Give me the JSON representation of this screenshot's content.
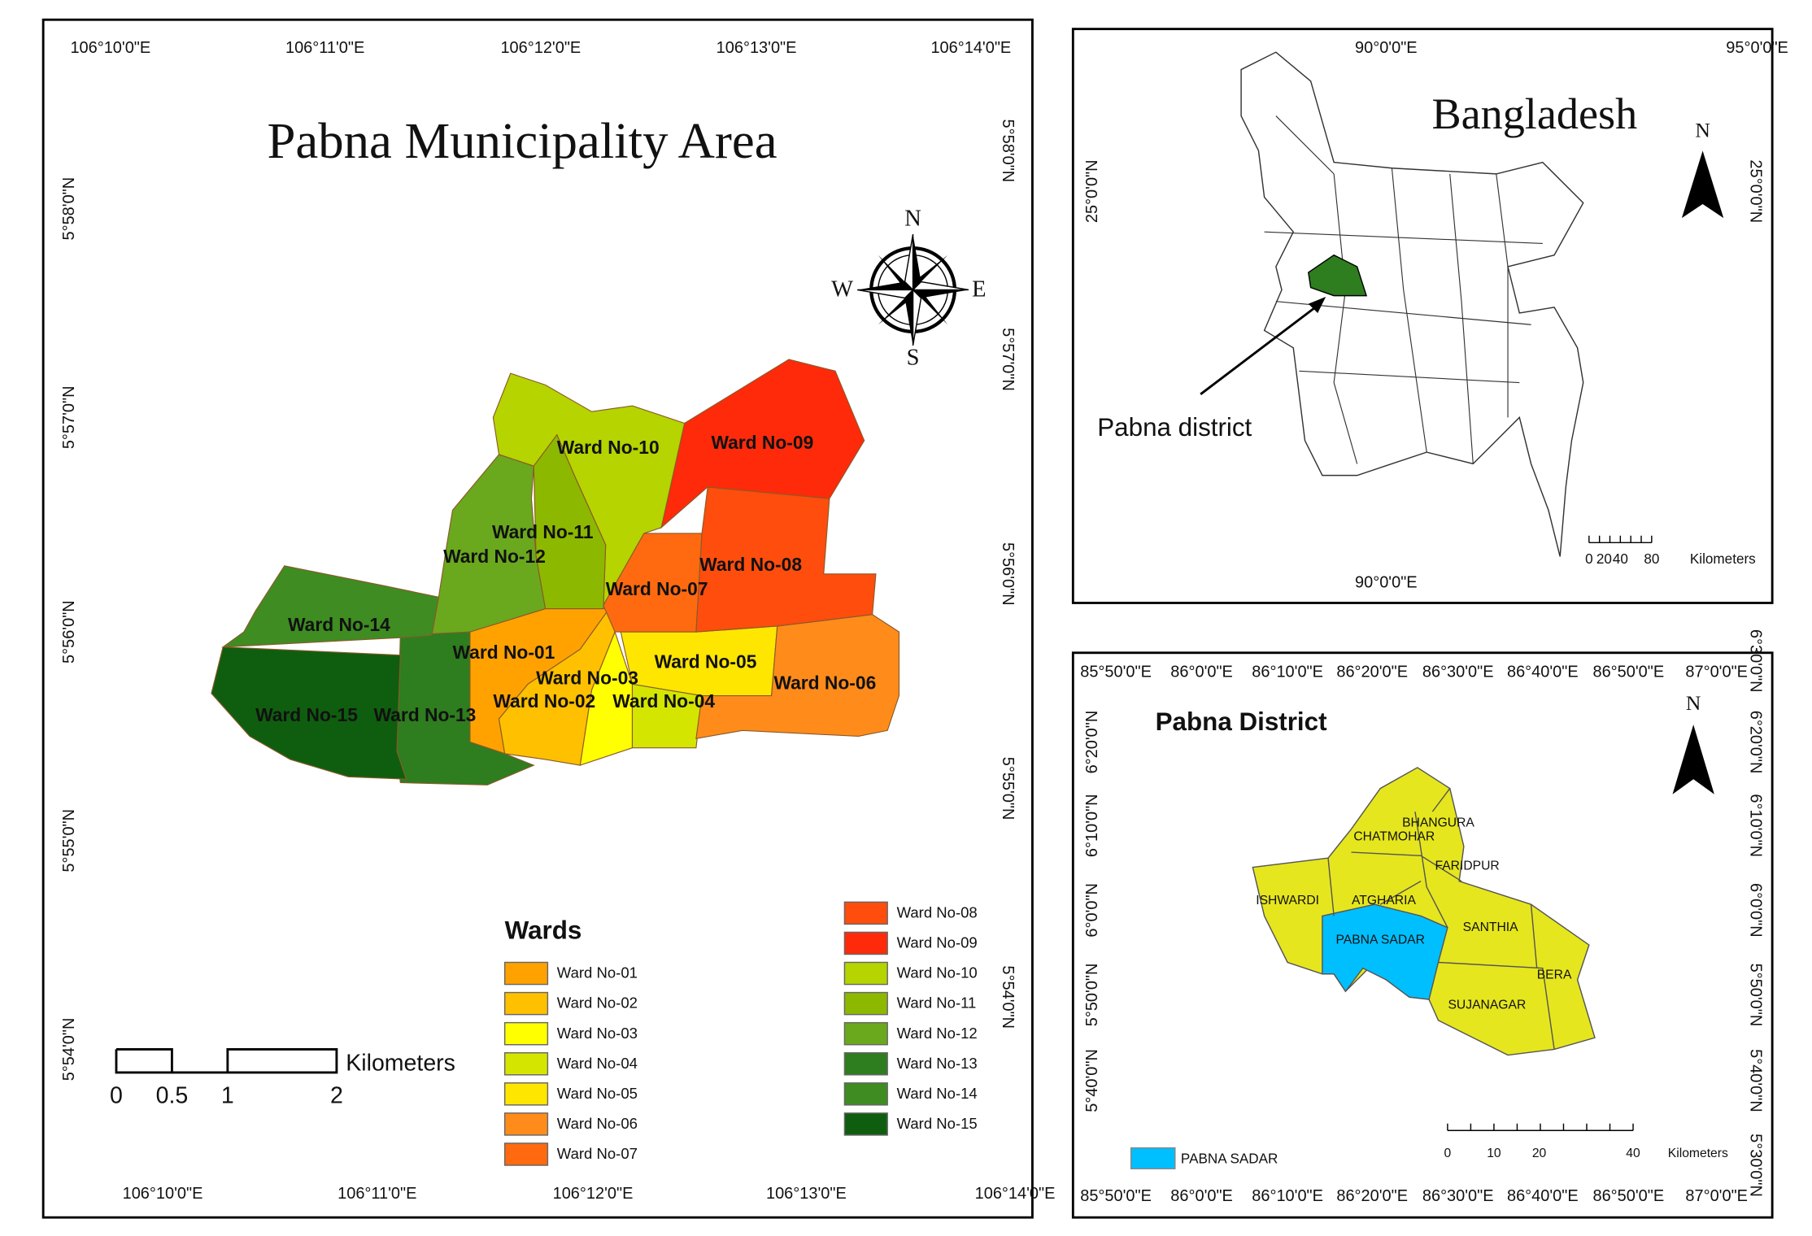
{
  "main_map": {
    "title": "Pabna Municipality Area",
    "top_coords": [
      "106°10'0\"E",
      "106°11'0\"E",
      "106°12'0\"E",
      "106°13'0\"E",
      "106°14'0\"E"
    ],
    "bottom_coords": [
      "106°10'0\"E",
      "106°11'0\"E",
      "106°12'0\"E",
      "106°13'0\"E",
      "106°14'0\"E"
    ],
    "left_coords": [
      "5°58'0\"N",
      "5°57'0\"N",
      "5°56'0\"N",
      "5°55'0\"N",
      "5°54'0\"N"
    ],
    "right_coords": [
      "5°58'0\"N",
      "5°57'0\"N",
      "5°56'0\"N",
      "5°55'0\"N",
      "5°54'0\"N"
    ],
    "compass": {
      "n": "N",
      "s": "S",
      "e": "E",
      "w": "W"
    },
    "ward_labels": [
      "Ward No-01",
      "Ward No-02",
      "Ward No-03",
      "Ward No-04",
      "Ward No-05",
      "Ward No-06",
      "Ward No-07",
      "Ward No-08",
      "Ward No-09",
      "Ward No-10",
      "Ward No-11",
      "Ward No-12",
      "Ward No-13",
      "Ward No-14",
      "Ward No-15"
    ],
    "legend": {
      "title": "Wards",
      "items": [
        "Ward No-01",
        "Ward No-02",
        "Ward No-03",
        "Ward No-04",
        "Ward No-05",
        "Ward No-06",
        "Ward No-07",
        "Ward No-08",
        "Ward No-09",
        "Ward No-10",
        "Ward No-11",
        "Ward No-12",
        "Ward No-13",
        "Ward No-14",
        "Ward No-15"
      ]
    },
    "scale": {
      "labels": [
        "0",
        "0.5",
        "1",
        "2"
      ],
      "unit": "Kilometers"
    }
  },
  "bangladesh_inset": {
    "title": "Bangladesh",
    "north": "N",
    "top_coords": [
      "90°0'0\"E",
      "95°0'0\"E"
    ],
    "bottom_coords": [
      "90°0'0\"E"
    ],
    "left_coords": [
      "25°0'0\"N"
    ],
    "right_coords": [
      "25°0'0\"N"
    ],
    "callout": "Pabna district",
    "scale": {
      "labels": [
        "0",
        "20",
        "40",
        "80"
      ],
      "unit": "Kilometers"
    }
  },
  "district_inset": {
    "title": "Pabna District",
    "north": "N",
    "top_coords": [
      "85°50'0\"E",
      "86°0'0\"E",
      "86°10'0\"E",
      "86°20'0\"E",
      "86°30'0\"E",
      "86°40'0\"E",
      "86°50'0\"E",
      "87°0'0\"E"
    ],
    "bottom_coords": [
      "85°50'0\"E",
      "86°0'0\"E",
      "86°10'0\"E",
      "86°20'0\"E",
      "86°30'0\"E",
      "86°40'0\"E",
      "86°50'0\"E",
      "87°0'0\"E"
    ],
    "left_coords": [
      "6°20'0\"N",
      "6°10'0\"N",
      "6°0'0\"N",
      "5°50'0\"N",
      "5°40'0\"N"
    ],
    "right_coords": [
      "6°30'0\"N",
      "6°20'0\"N",
      "6°10'0\"N",
      "6°0'0\"N",
      "5°50'0\"N",
      "5°40'0\"N",
      "5°30'0\"N"
    ],
    "upazilas": [
      "BHANGURA",
      "CHATMOHAR",
      "FARIDPUR",
      "ISHWARDI",
      "ATGHARIA",
      "PABNA SADAR",
      "SANTHIA",
      "BERA",
      "SUJANAGAR"
    ],
    "legend_item": "PABNA SADAR",
    "scale": {
      "labels": [
        "0",
        "10",
        "20",
        "40"
      ],
      "unit": "Kilometers"
    }
  }
}
